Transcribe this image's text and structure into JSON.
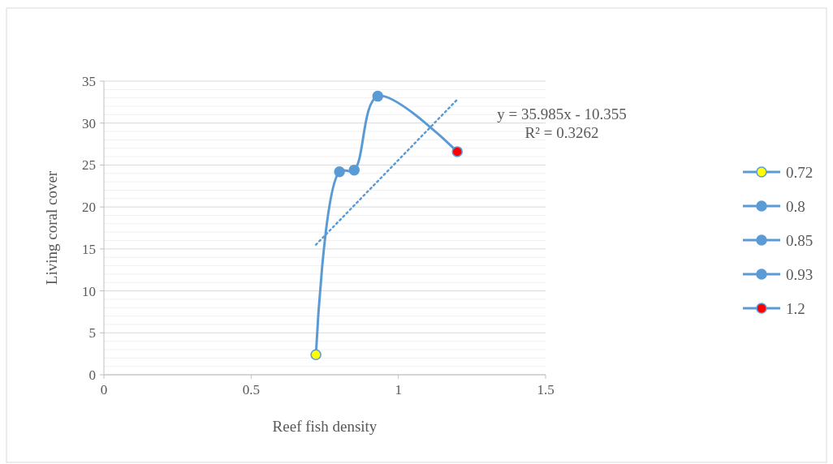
{
  "chart_data": {
    "type": "scatter",
    "xlabel": "Reef fish density",
    "ylabel": "Living coral cover",
    "xlim": [
      0,
      1.5
    ],
    "xticks": [
      0,
      0.5,
      1,
      1.5
    ],
    "ylim": [
      0,
      35
    ],
    "yticks": [
      0,
      {
        "value": 1,
        "label": null
      },
      {
        "value": 2,
        "label": null
      },
      {
        "value": 3,
        "label": null
      },
      {
        "value": 4,
        "label": null
      },
      5,
      {
        "value": 6,
        "label": null
      },
      {
        "value": 7,
        "label": null
      },
      {
        "value": 8,
        "label": null
      },
      {
        "value": 9,
        "label": null
      },
      10,
      {
        "value": 11,
        "label": null
      },
      {
        "value": 12,
        "label": null
      },
      {
        "value": 13,
        "label": null
      },
      {
        "value": 14,
        "label": null
      },
      15,
      {
        "value": 16,
        "label": null
      },
      {
        "value": 17,
        "label": null
      },
      {
        "value": 18,
        "label": null
      },
      {
        "value": 19,
        "label": null
      },
      20,
      {
        "value": 21,
        "label": null
      },
      {
        "value": 22,
        "label": null
      },
      {
        "value": 23,
        "label": null
      },
      {
        "value": 24,
        "label": null
      },
      25,
      {
        "value": 26,
        "label": null
      },
      {
        "value": 27,
        "label": null
      },
      {
        "value": 28,
        "label": null
      },
      {
        "value": 29,
        "label": null
      },
      30,
      {
        "value": 31,
        "label": null
      },
      {
        "value": 32,
        "label": null
      },
      {
        "value": 33,
        "label": null
      },
      {
        "value": 34,
        "label": null
      },
      35
    ],
    "grid": "y",
    "legend": "right",
    "marker": "circle",
    "series": [
      {
        "type": "line",
        "color": "#5b9bd5",
        "marker": "none",
        "x": [
          0.72,
          0.8,
          0.85,
          0.93,
          1.2
        ],
        "values": [
          2.4,
          24.2,
          24.4,
          33.2,
          26.6
        ]
      },
      {
        "name": "0.72",
        "color": "#ffff00",
        "x": [
          0.72
        ],
        "values": [
          2.4
        ]
      },
      {
        "name": "0.8",
        "color": "#5b9bd5",
        "x": [
          0.8
        ],
        "values": [
          24.2
        ]
      },
      {
        "name": "0.85",
        "color": "#5b9bd5",
        "x": [
          0.85
        ],
        "values": [
          24.4
        ]
      },
      {
        "name": "0.93",
        "color": "#5b9bd5",
        "x": [
          0.93
        ],
        "values": [
          33.2
        ]
      },
      {
        "name": "1.2",
        "color": "#ff0000",
        "x": [
          1.2
        ],
        "values": [
          26.6
        ]
      },
      {
        "type": "line",
        "color": "#5b9bd5",
        "marker": "none",
        "line_style": "dotted",
        "x": [
          0.72,
          1.2
        ],
        "values": [
          15.5,
          32.8
        ]
      }
    ],
    "annotations": [
      "y = 35.985x - 10.355",
      "R² = 0.3262"
    ]
  }
}
